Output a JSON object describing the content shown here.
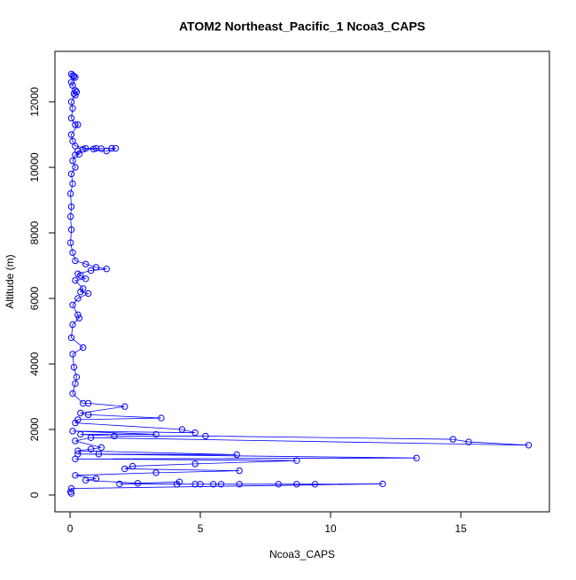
{
  "chart_data": {
    "type": "line",
    "title": "ATOM2 Northeast_Pacific_1 Ncoa3_CAPS",
    "xlabel": "Ncoa3_CAPS",
    "ylabel": "Altitude (m)",
    "color": "#0000ff",
    "markers": true,
    "x": [
      0.05,
      0.1,
      0.15,
      0.2,
      0.05,
      0.1,
      0.2,
      0.25,
      0.15,
      0.2,
      0.05,
      0.1,
      0.05,
      0.2,
      0.3,
      0.05,
      0.1,
      0.2,
      0.6,
      1.0,
      1.2,
      1.6,
      1.75,
      1.4,
      0.9,
      0.5,
      0.3,
      0.35,
      0.2,
      0.1,
      0.2,
      0.05,
      0.1,
      0.02,
      0.05,
      0.02,
      0.05,
      0.02,
      0.1,
      0.2,
      0.6,
      1.0,
      1.4,
      0.8,
      0.3,
      0.4,
      0.6,
      0.2,
      0.5,
      0.4,
      0.7,
      0.3,
      0.1,
      0.3,
      0.35,
      0.1,
      0.05,
      0.5,
      0.1,
      0.15,
      0.25,
      0.2,
      0.1,
      0.5,
      0.7,
      2.1,
      0.4,
      0.7,
      3.5,
      0.3,
      0.2,
      4.3,
      4.8,
      0.1,
      3.3,
      0.4,
      1.7,
      5.2,
      14.7,
      15.3,
      17.6,
      0.8,
      0.2,
      1.2,
      0.8,
      0.3,
      6.4,
      1.1,
      0.3,
      13.3,
      0.2,
      8.7,
      4.8,
      2.4,
      2.1,
      6.5,
      3.3,
      0.2,
      1.0,
      0.6,
      2.6,
      4.2,
      4.1,
      1.9,
      4.8,
      5.0,
      5.5,
      5.8,
      6.5,
      8.0,
      8.7,
      9.4,
      12.0,
      0.05,
      0.02,
      0.05
    ],
    "values": [
      12850,
      12800,
      12780,
      12750,
      12600,
      12500,
      12350,
      12300,
      12250,
      12200,
      12000,
      11800,
      11500,
      11300,
      11300,
      11000,
      10800,
      10650,
      10580,
      10580,
      10570,
      10580,
      10580,
      10500,
      10560,
      10550,
      10500,
      10400,
      10380,
      10200,
      10000,
      9800,
      9500,
      9200,
      8800,
      8500,
      8100,
      7700,
      7400,
      7150,
      7050,
      6950,
      6900,
      6850,
      6750,
      6700,
      6600,
      6550,
      6300,
      6200,
      6150,
      6000,
      5800,
      5500,
      5400,
      5200,
      4800,
      4500,
      4300,
      3900,
      3600,
      3400,
      3100,
      2800,
      2800,
      2700,
      2500,
      2450,
      2350,
      2300,
      2200,
      2000,
      1900,
      1950,
      1850,
      1850,
      1800,
      1800,
      1700,
      1620,
      1520,
      1750,
      1650,
      1450,
      1400,
      1350,
      1230,
      1250,
      1250,
      1130,
      1100,
      1050,
      950,
      880,
      800,
      740,
      680,
      600,
      500,
      450,
      360,
      400,
      330,
      340,
      330,
      330,
      330,
      330,
      330,
      330,
      330,
      330,
      340,
      200,
      100,
      50
    ],
    "xlim": [
      -0.58,
      18.4
    ],
    "ylim": [
      -513,
      13540
    ],
    "xticks": [
      0,
      5,
      10,
      15
    ],
    "yticks": [
      0,
      2000,
      4000,
      6000,
      8000,
      10000,
      12000
    ]
  }
}
